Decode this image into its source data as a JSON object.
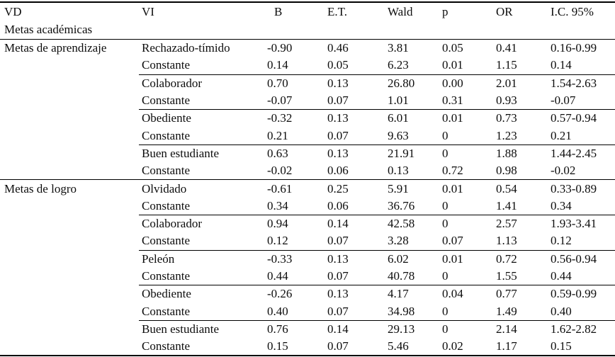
{
  "table": {
    "headers": [
      "VD",
      "VI",
      "B",
      "E.T.",
      "Wald",
      "p",
      "OR",
      "I.C. 95%"
    ],
    "subheader": "Metas académicas",
    "groups": [
      {
        "vd": "Metas de aprendizaje",
        "blocks": [
          {
            "rows": [
              [
                "Rechazado-tímido",
                "-0.90",
                "0.46",
                "3.81",
                "0.05",
                "0.41",
                "0.16-0.99"
              ],
              [
                "Constante",
                "0.14",
                "0.05",
                "6.23",
                "0.01",
                "1.15",
                "0.14"
              ]
            ]
          },
          {
            "rows": [
              [
                "Colaborador",
                "0.70",
                "0.13",
                "26.80",
                "0.00",
                "2.01",
                "1.54-2.63"
              ],
              [
                "Constante",
                "-0.07",
                "0.07",
                "1.01",
                "0.31",
                "0.93",
                "-0.07"
              ]
            ]
          },
          {
            "rows": [
              [
                "Obediente",
                "-0.32",
                "0.13",
                "6.01",
                "0.01",
                "0.73",
                "0.57-0.94"
              ],
              [
                "Constante",
                "0.21",
                "0.07",
                "9.63",
                "0",
                "1.23",
                "0.21"
              ]
            ]
          },
          {
            "rows": [
              [
                "Buen estudiante",
                "0.63",
                "0.13",
                "21.91",
                "0",
                "1.88",
                "1.44-2.45"
              ],
              [
                "Constante",
                "-0.02",
                "0.06",
                "0.13",
                "0.72",
                "0.98",
                "-0.02"
              ]
            ]
          }
        ]
      },
      {
        "vd": "Metas de logro",
        "blocks": [
          {
            "rows": [
              [
                "Olvidado",
                "-0.61",
                "0.25",
                "5.91",
                "0.01",
                "0.54",
                "0.33-0.89"
              ],
              [
                "Constante",
                "0.34",
                "0.06",
                "36.76",
                "0",
                "1.41",
                "0.34"
              ]
            ]
          },
          {
            "rows": [
              [
                "Colaborador",
                "0.94",
                "0.14",
                "42.58",
                "0",
                "2.57",
                "1.93-3.41"
              ],
              [
                "Constante",
                "0.12",
                "0.07",
                "3.28",
                "0.07",
                "1.13",
                "0.12"
              ]
            ]
          },
          {
            "rows": [
              [
                "Peleón",
                "-0.33",
                "0.13",
                "6.02",
                "0.01",
                "0.72",
                "0.56-0.94"
              ],
              [
                "Constante",
                "0.44",
                "0.07",
                "40.78",
                "0",
                "1.55",
                "0.44"
              ]
            ]
          },
          {
            "rows": [
              [
                "Obediente",
                "-0.26",
                "0.13",
                "4.17",
                "0.04",
                "0.77",
                "0.59-0.99"
              ],
              [
                "Constante",
                "0.40",
                "0.07",
                "34.98",
                "0",
                "1.49",
                "0.40"
              ]
            ]
          },
          {
            "rows": [
              [
                "Buen estudiante",
                "0.76",
                "0.14",
                "29.13",
                "0",
                "2.14",
                "1.62-2.82"
              ],
              [
                "Constante",
                "0.15",
                "0.07",
                "5.46",
                "0.02",
                "1.17",
                "0.15"
              ]
            ]
          }
        ]
      }
    ]
  }
}
